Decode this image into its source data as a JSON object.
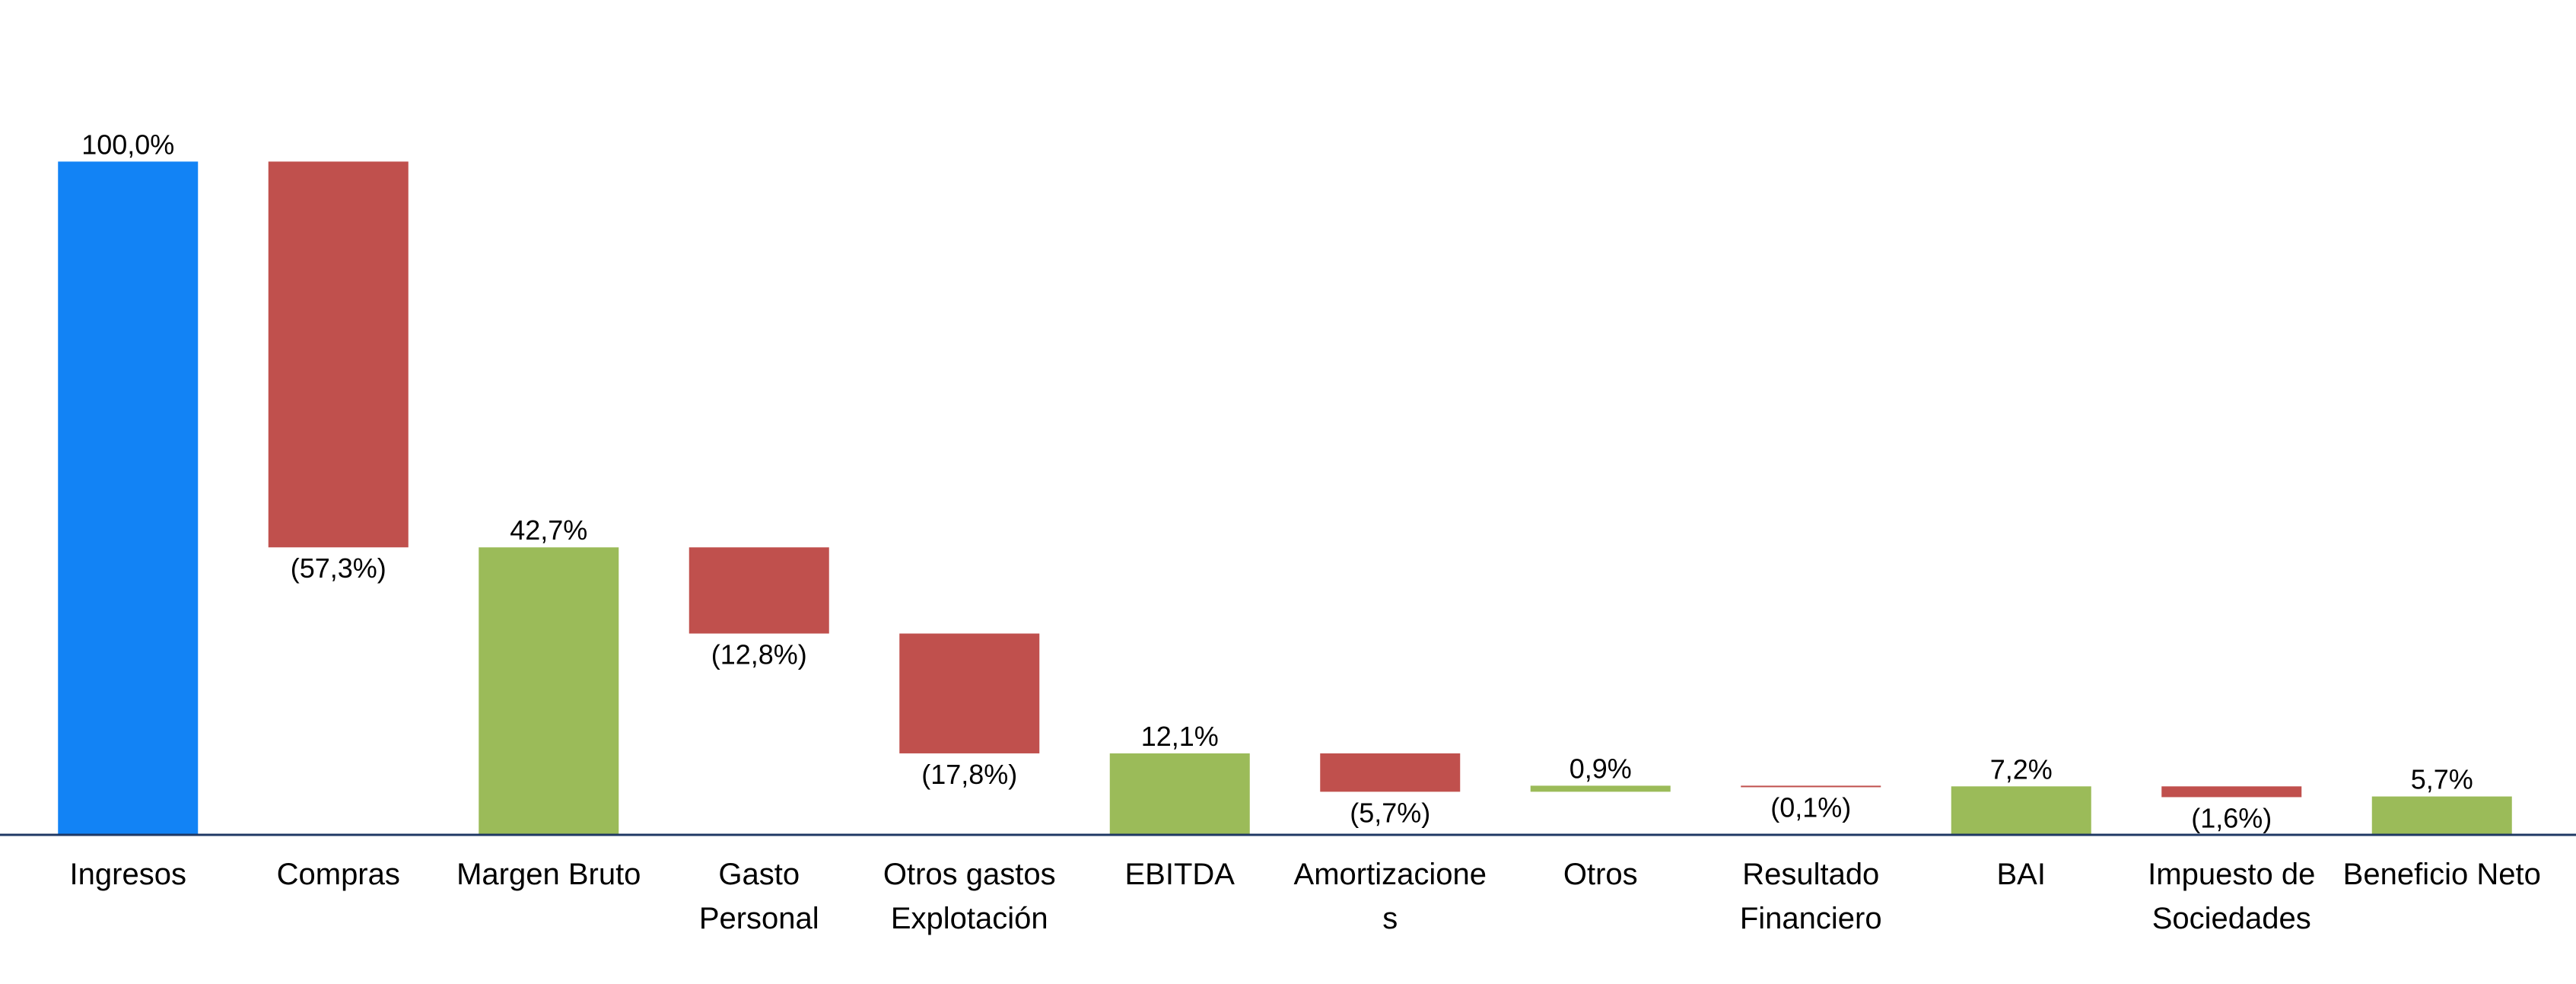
{
  "chart_data": {
    "type": "waterfall",
    "categories": [
      "Ingresos",
      "Compras",
      "Margen Bruto",
      "Gasto Personal",
      "Otros gastos Explotación",
      "EBITDA",
      "Amortizaciones",
      "Otros",
      "Resultado Financiero",
      "BAI",
      "Impuesto de Sociedades",
      "Beneficio Neto"
    ],
    "values": [
      100.0,
      -57.3,
      42.7,
      -12.8,
      -17.8,
      12.1,
      -5.7,
      0.9,
      -0.1,
      7.2,
      -1.6,
      5.7
    ],
    "value_labels": [
      "100,0%",
      "(57,3%)",
      "42,7%",
      "(12,8%)",
      "(17,8%)",
      "12,1%",
      "(5,7%)",
      "0,9%",
      "(0,1%)",
      "7,2%",
      "(1,6%)",
      "5,7%"
    ],
    "bar_kinds": [
      "total",
      "delta",
      "total",
      "delta",
      "delta",
      "total",
      "delta",
      "delta",
      "delta",
      "total",
      "delta",
      "total"
    ],
    "colors": [
      "#1283f5",
      "#c0504d",
      "#9bbb59",
      "#c0504d",
      "#c0504d",
      "#9bbb59",
      "#c0504d",
      "#9bbb59",
      "#c0504d",
      "#9bbb59",
      "#c0504d",
      "#9bbb59"
    ],
    "axis_color": "#1f3864",
    "ylim": [
      0,
      124
    ]
  }
}
